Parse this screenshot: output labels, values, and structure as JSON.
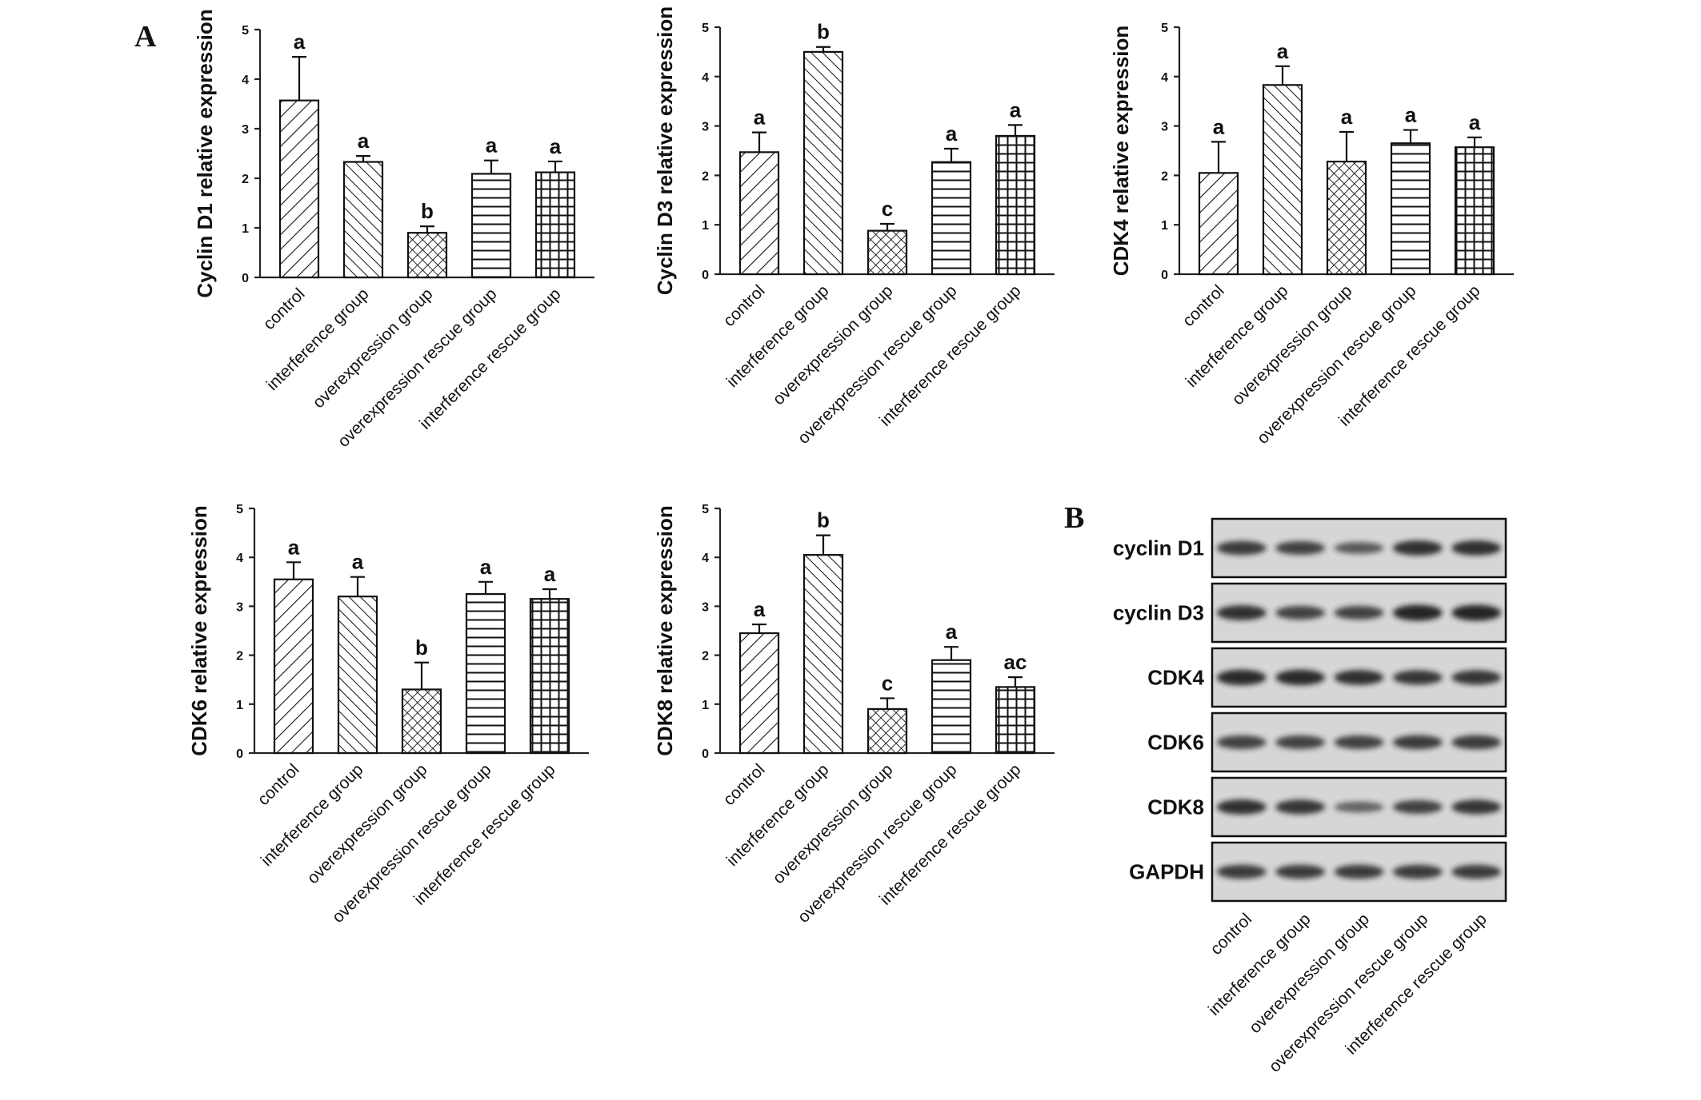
{
  "panel_labels": {
    "a": "A",
    "b": "B"
  },
  "colors": {
    "ink": "#111111",
    "background": "#ffffff",
    "blot_bg": "#d6d6d6",
    "band": "#1a1a1a"
  },
  "chart_data": [
    {
      "type": "bar",
      "ylabel": "Cyclin D1 relative expression",
      "ylim": [
        0,
        5
      ],
      "yticks": [
        "0",
        "1",
        "2",
        "3",
        "4",
        "5"
      ],
      "categories": [
        "control",
        "interference group",
        "overexpression group",
        "overexpression rescue group",
        "interference rescue group"
      ],
      "values": [
        3.57,
        2.33,
        0.9,
        2.09,
        2.12
      ],
      "errors": [
        0.88,
        0.12,
        0.13,
        0.27,
        0.22
      ],
      "significance": [
        "a",
        "a",
        "b",
        "a",
        "a"
      ],
      "patterns": [
        "diag-right",
        "diag-left",
        "crosshatch",
        "horizontal",
        "grid"
      ]
    },
    {
      "type": "bar",
      "ylabel": "Cyclin D3 relative expression",
      "ylim": [
        0,
        5
      ],
      "yticks": [
        "0",
        "1",
        "2",
        "3",
        "4",
        "5"
      ],
      "categories": [
        "control",
        "interference group",
        "overexpression group",
        "overexpression rescue group",
        "interference rescue group"
      ],
      "values": [
        2.47,
        4.5,
        0.88,
        2.27,
        2.8
      ],
      "errors": [
        0.4,
        0.1,
        0.14,
        0.27,
        0.22
      ],
      "significance": [
        "a",
        "b",
        "c",
        "a",
        "a"
      ],
      "patterns": [
        "diag-right",
        "diag-left",
        "crosshatch",
        "horizontal",
        "grid"
      ]
    },
    {
      "type": "bar",
      "ylabel": "CDK4  relative expression",
      "ylim": [
        0,
        5
      ],
      "yticks": [
        "0",
        "1",
        "2",
        "3",
        "4",
        "5"
      ],
      "categories": [
        "control",
        "interference group",
        "overexpression group",
        "overexpression rescue group",
        "interference rescue group"
      ],
      "values": [
        2.05,
        3.83,
        2.28,
        2.65,
        2.57
      ],
      "errors": [
        0.63,
        0.38,
        0.6,
        0.27,
        0.2
      ],
      "significance": [
        "a",
        "a",
        "a",
        "a",
        "a"
      ],
      "patterns": [
        "diag-right",
        "diag-left",
        "crosshatch",
        "horizontal",
        "grid"
      ]
    },
    {
      "type": "bar",
      "ylabel": "CDK6 relative expression",
      "ylim": [
        0,
        5
      ],
      "yticks": [
        "0",
        "1",
        "2",
        "3",
        "4",
        "5"
      ],
      "categories": [
        "control",
        "interference group",
        "overexpression group",
        "overexpression rescue group",
        "interference rescue group"
      ],
      "values": [
        3.55,
        3.2,
        1.3,
        3.25,
        3.15
      ],
      "errors": [
        0.35,
        0.4,
        0.55,
        0.25,
        0.2
      ],
      "significance": [
        "a",
        "a",
        "b",
        "a",
        "a"
      ],
      "patterns": [
        "diag-right",
        "diag-left",
        "crosshatch",
        "horizontal",
        "grid"
      ]
    },
    {
      "type": "bar",
      "ylabel": "CDK8 relative expression",
      "ylim": [
        0,
        5
      ],
      "yticks": [
        "0",
        "1",
        "2",
        "3",
        "4",
        "5"
      ],
      "categories": [
        "control",
        "interference group",
        "overexpression group",
        "overexpression rescue group",
        "interference rescue group"
      ],
      "values": [
        2.45,
        4.05,
        0.9,
        1.9,
        1.35
      ],
      "errors": [
        0.18,
        0.4,
        0.22,
        0.27,
        0.2
      ],
      "significance": [
        "a",
        "b",
        "c",
        "a",
        "ac"
      ],
      "patterns": [
        "diag-right",
        "diag-left",
        "crosshatch",
        "horizontal",
        "grid"
      ]
    }
  ],
  "western_blot": {
    "proteins": [
      "cyclin D1",
      "cyclin D3",
      "CDK4",
      "CDK6",
      "CDK8",
      "GAPDH"
    ],
    "lanes": [
      "control",
      "interference group",
      "overexpression group",
      "overexpression rescue group",
      "interference rescue group"
    ],
    "band_intensity": [
      [
        0.8,
        0.75,
        0.55,
        0.9,
        0.9
      ],
      [
        0.9,
        0.75,
        0.75,
        1.0,
        1.0
      ],
      [
        0.95,
        0.95,
        0.9,
        0.85,
        0.85
      ],
      [
        0.75,
        0.75,
        0.75,
        0.8,
        0.8
      ],
      [
        0.9,
        0.85,
        0.45,
        0.75,
        0.85
      ],
      [
        0.8,
        0.8,
        0.8,
        0.8,
        0.8
      ]
    ]
  }
}
